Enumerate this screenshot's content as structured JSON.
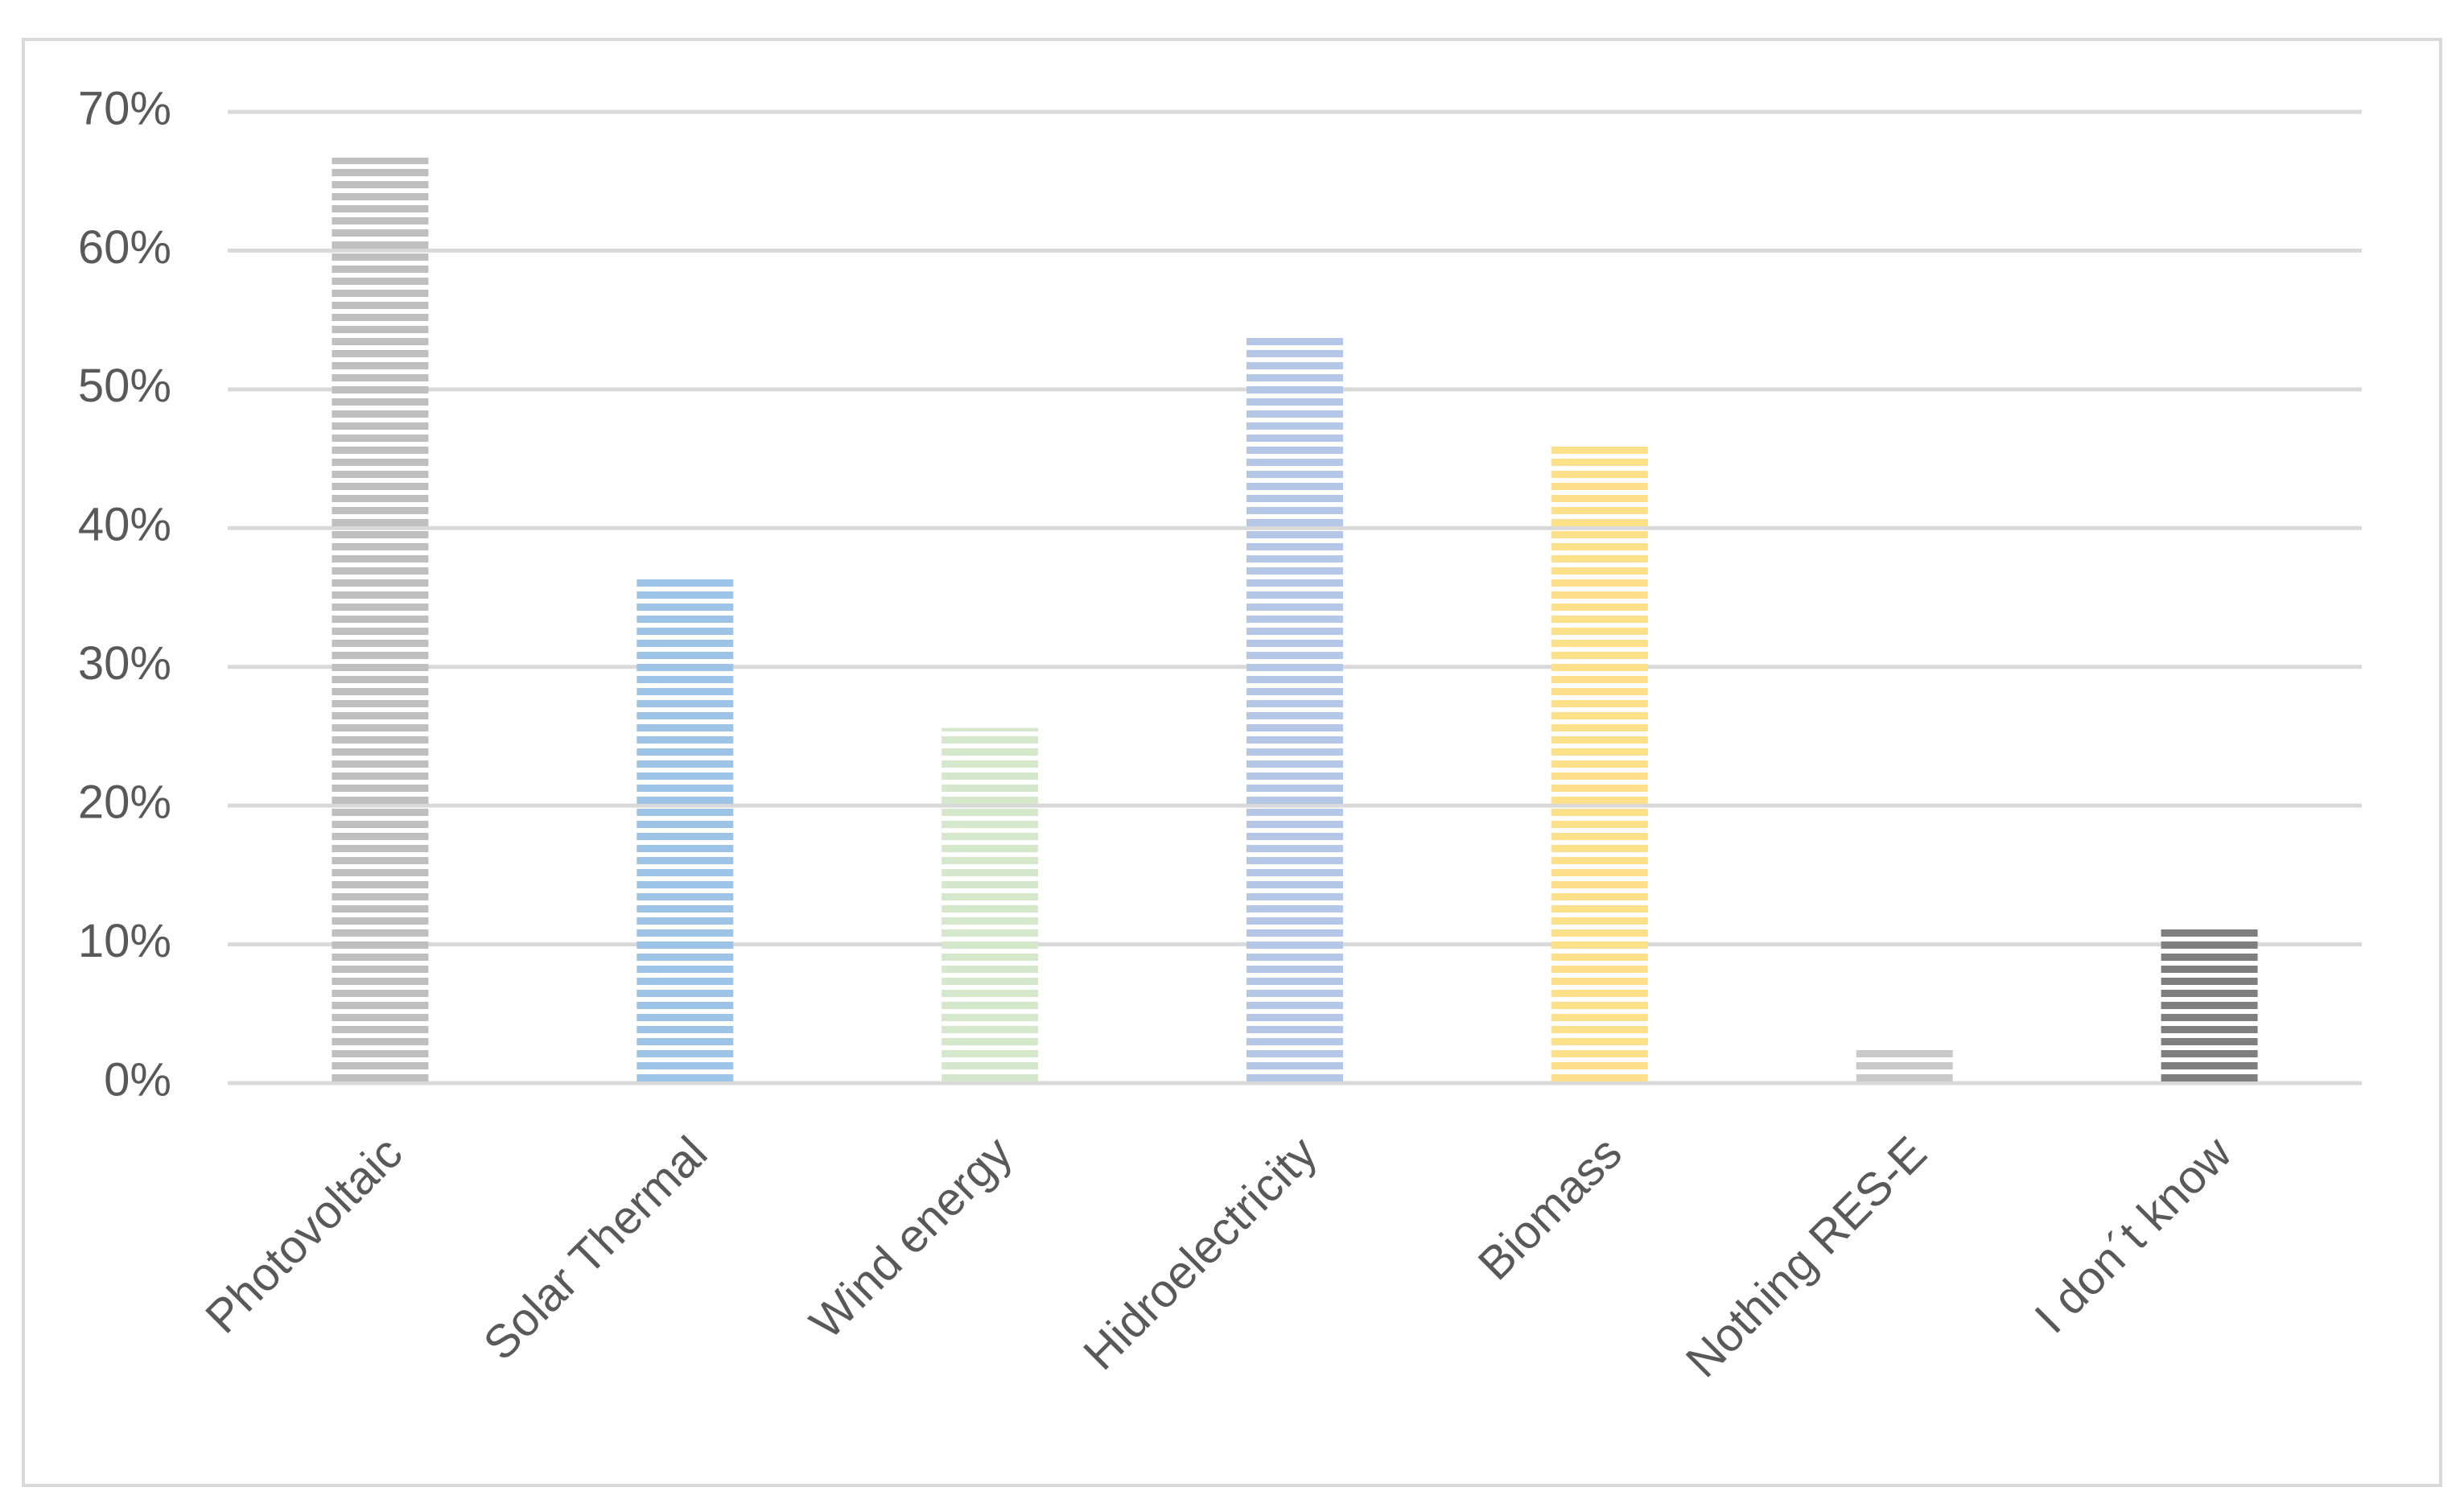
{
  "chart_data": {
    "type": "bar",
    "categories": [
      "Photovoltaic",
      "Solar Thermal",
      "Wind energy",
      "Hidroelectricity",
      "Biomass",
      "Nothing RES-E",
      "I don´t know"
    ],
    "values": [
      66.7,
      36.6,
      25.6,
      53.9,
      46.1,
      2.5,
      11.1
    ],
    "colors": [
      "#bfbfbf",
      "#9dc3e6",
      "#d5e8cb",
      "#b4c7e7",
      "#ffe08a",
      "#c9c9c9",
      "#7f7f7f"
    ],
    "ylim": [
      0,
      70
    ],
    "yticks": [
      {
        "value": 0,
        "label": "0%"
      },
      {
        "value": 10,
        "label": "10%"
      },
      {
        "value": 20,
        "label": "20%"
      },
      {
        "value": 30,
        "label": "30%"
      },
      {
        "value": 40,
        "label": "40%"
      },
      {
        "value": 50,
        "label": "50%"
      },
      {
        "value": 60,
        "label": "60%"
      },
      {
        "value": 70,
        "label": "70%"
      }
    ],
    "grid": true
  }
}
